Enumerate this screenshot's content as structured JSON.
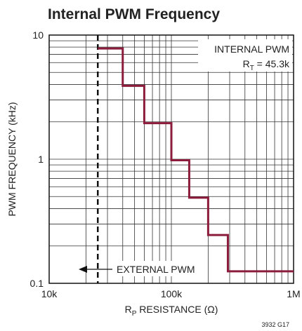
{
  "chart_data": {
    "type": "line",
    "title": "Internal PWM Frequency",
    "y_label": "PWM FREQUENCY (kHz)",
    "x_label": [
      "R",
      "P",
      " RESISTANCE (Ω)"
    ],
    "x_scale": "log",
    "y_scale": "log",
    "grid": true,
    "minor_grid": true,
    "xlim": [
      10000,
      1000000
    ],
    "ylim": [
      0.1,
      10
    ],
    "xticks": [
      {
        "value": 10000,
        "label": "10k"
      },
      {
        "value": 100000,
        "label": "100k"
      },
      {
        "value": 1000000,
        "label": "1M"
      }
    ],
    "yticks": [
      0.1,
      1,
      10
    ],
    "series": [
      {
        "name": "INTERNAL PWM",
        "color": "#8c1c3c",
        "x": [
          25000,
          40000,
          40000,
          60000,
          60000,
          100000,
          100000,
          140000,
          140000,
          200000,
          200000,
          290000,
          290000,
          1000000
        ],
        "values": [
          7.8,
          7.8,
          3.9,
          3.9,
          1.95,
          1.95,
          0.98,
          0.98,
          0.49,
          0.49,
          0.245,
          0.245,
          0.125,
          0.125
        ]
      }
    ],
    "boundary": {
      "x": 25000,
      "label": "EXTERNAL PWM"
    },
    "annotation": [
      "R",
      "T",
      " = 45.3k"
    ],
    "figure_code": "3932 G17"
  }
}
